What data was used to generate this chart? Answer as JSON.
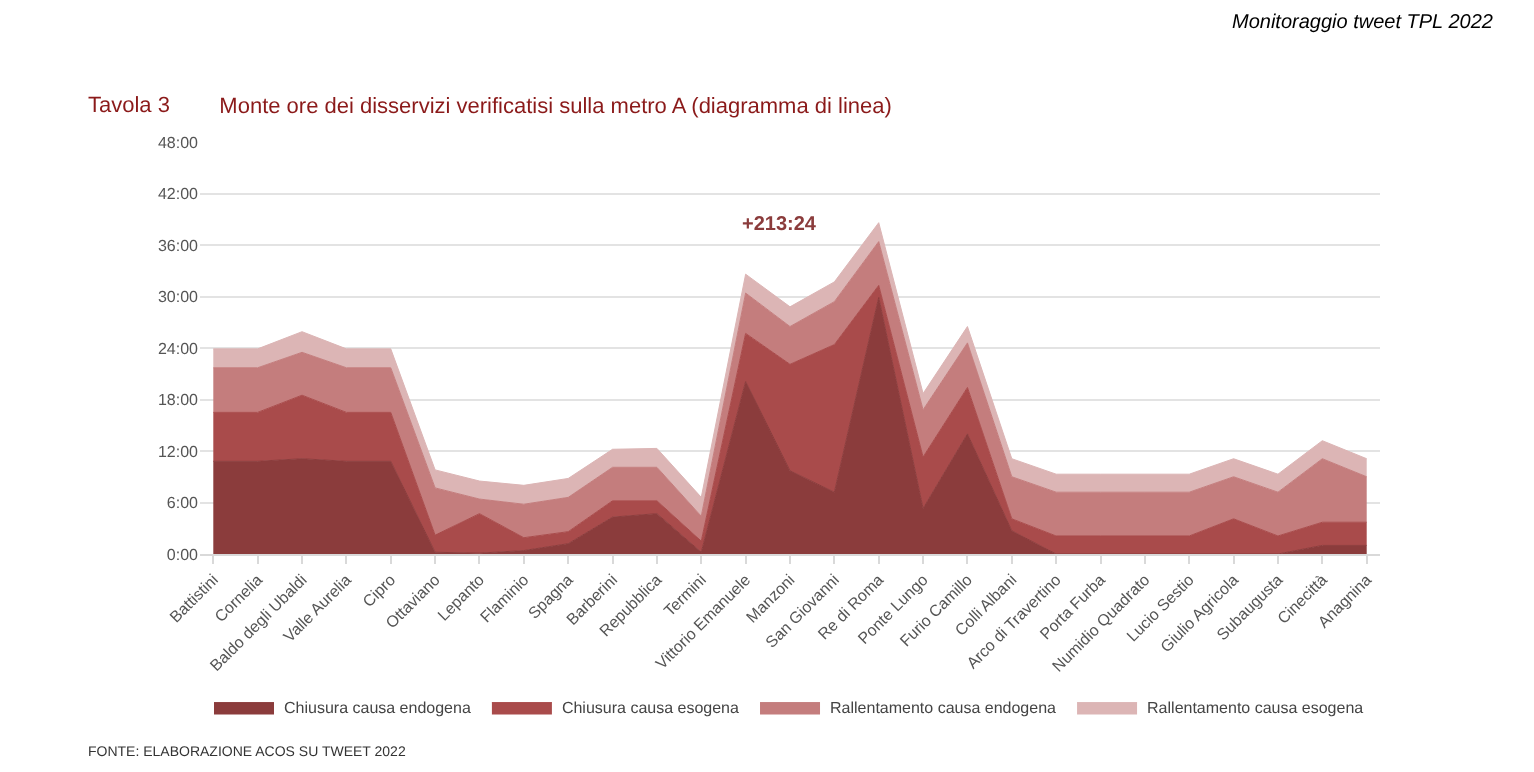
{
  "chart_data": {
    "type": "area",
    "stacked": true,
    "title": "Monte ore dei disservizi verificatisi sulla metro A (diagramma di linea)",
    "annotations": [
      "Monitoraggio tweet TPL 2022",
      "Tavola 3",
      "FONTE: ELABORAZIONE ACOS SU TWEET 2022",
      "+213:24"
    ],
    "categories": [
      "Battistini",
      "Cornelia",
      "Baldo degli Ubaldi",
      "Valle Aurelia",
      "Cipro",
      "Ottaviano",
      "Lepanto",
      "Flaminio",
      "Spagna",
      "Barberini",
      "Repubblica",
      "Termini",
      "Vittorio Emanuele",
      "Manzoni",
      "San Giovanni",
      "Re di Roma",
      "Ponte Lungo",
      "Furio Camillo",
      "Colli Albani",
      "Arco di Travertino",
      "Porta Furba",
      "Numidio Quadrato",
      "Lucio Sestio",
      "Giulio Agricola",
      "Subaugusta",
      "Cinecittà",
      "Anagnina"
    ],
    "series": [
      {
        "name": "Chiusura causa endogena",
        "color": "#8b3c3c",
        "values": [
          10.8,
          10.8,
          11.1,
          10.8,
          10.8,
          0.2,
          0.1,
          0.4,
          1.2,
          4.3,
          4.7,
          0.2,
          20.1,
          9.7,
          7.2,
          29.9,
          5.3,
          14.0,
          2.7,
          0,
          0,
          0,
          0,
          0,
          0,
          1.0,
          1.0
        ]
      },
      {
        "name": "Chiusura causa esogena",
        "color": "#a94b4b",
        "values": [
          5.7,
          5.7,
          7.4,
          5.7,
          5.7,
          2.0,
          4.6,
          1.5,
          1.4,
          1.9,
          1.5,
          1.3,
          5.6,
          12.4,
          17.2,
          1.4,
          6.0,
          5.4,
          1.4,
          2.1,
          2.1,
          2.1,
          2.1,
          4.1,
          2.1,
          2.7,
          2.7
        ]
      },
      {
        "name": "Rallentamento causa endogena",
        "color": "#c47d7d",
        "values": [
          5.2,
          5.2,
          5.0,
          5.2,
          5.2,
          5.5,
          1.7,
          3.9,
          4.0,
          3.9,
          3.9,
          2.9,
          4.7,
          4.4,
          5.0,
          5.1,
          5.5,
          5.2,
          4.9,
          5.1,
          5.1,
          5.1,
          5.1,
          4.9,
          5.1,
          7.4,
          5.3
        ]
      },
      {
        "name": "Rallentamento causa esogena",
        "color": "#dcb5b5",
        "values": [
          2.2,
          2.2,
          2.4,
          2.2,
          2.2,
          2.1,
          2.1,
          2.2,
          2.2,
          2.1,
          2.2,
          2.2,
          2.2,
          2.3,
          2.3,
          2.2,
          1.9,
          1.9,
          2.1,
          2.1,
          2.1,
          2.1,
          2.1,
          2.1,
          2.1,
          2.1,
          2.1
        ]
      }
    ],
    "ylim": [
      0,
      48
    ],
    "yticks": [
      {
        "value": 0,
        "label": "0:00"
      },
      {
        "value": 6,
        "label": "6:00"
      },
      {
        "value": 12,
        "label": "12:00"
      },
      {
        "value": 18,
        "label": "18:00"
      },
      {
        "value": 24,
        "label": "24:00"
      },
      {
        "value": 30,
        "label": "30:00"
      },
      {
        "value": 36,
        "label": "36:00"
      },
      {
        "value": 42,
        "label": "42:00"
      },
      {
        "value": 48,
        "label": "48:00"
      }
    ],
    "grid": "y",
    "legend": "bottom"
  }
}
